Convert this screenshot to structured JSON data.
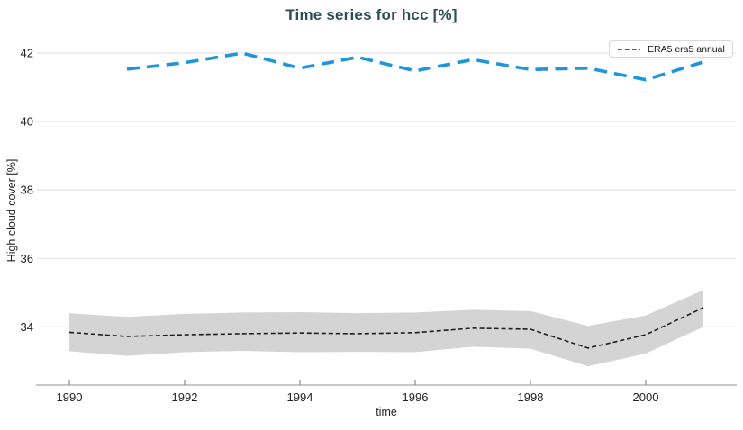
{
  "chart_data": {
    "type": "line",
    "title": "Time series for hcc [%]",
    "xlabel": "time",
    "ylabel": "High cloud cover [%]",
    "x_ticks": [
      1990,
      1992,
      1994,
      1996,
      1998,
      2000
    ],
    "y_ticks": [
      34,
      36,
      38,
      40,
      42
    ],
    "xlim": [
      1989.5,
      2001.5
    ],
    "ylim": [
      32.3,
      42.5
    ],
    "grid": "horizontal",
    "legend_position": "top-right",
    "series": [
      {
        "name": "ERA5 era5 annual",
        "in_legend": true,
        "color": "#1f1f1f",
        "line_style": "dashed-short",
        "x": [
          1990,
          1991,
          1992,
          1993,
          1994,
          1995,
          1996,
          1997,
          1998,
          1999,
          2000,
          2001
        ],
        "values": [
          33.84,
          33.72,
          33.77,
          33.8,
          33.82,
          33.8,
          33.83,
          33.96,
          33.93,
          33.38,
          33.77,
          34.56
        ],
        "band_upper": [
          34.4,
          34.29,
          34.38,
          34.42,
          34.43,
          34.4,
          34.42,
          34.5,
          34.46,
          34.03,
          34.33,
          35.08
        ],
        "band_lower": [
          33.29,
          33.15,
          33.26,
          33.3,
          33.26,
          33.27,
          33.26,
          33.42,
          33.36,
          32.85,
          33.22,
          34.0
        ],
        "band_color": "#d4d4d4"
      },
      {
        "name": "",
        "in_legend": false,
        "color": "#1d96dc",
        "line_style": "dashed-long",
        "x": [
          1991,
          1992,
          1993,
          1994,
          1995,
          1996,
          1997,
          1998,
          1999,
          2000,
          2001
        ],
        "values": [
          41.53,
          41.72,
          42.0,
          41.56,
          41.88,
          41.48,
          41.81,
          41.52,
          41.56,
          41.22,
          41.74
        ]
      }
    ]
  },
  "legend": {
    "entry_label": "ERA5 era5 annual"
  },
  "colors": {
    "title": "#2d4f4f",
    "tick_label": "#222222",
    "gridline": "#e4e4e4",
    "axis_line": "#a9a9a9",
    "tick_mark": "#8a8a8a"
  }
}
